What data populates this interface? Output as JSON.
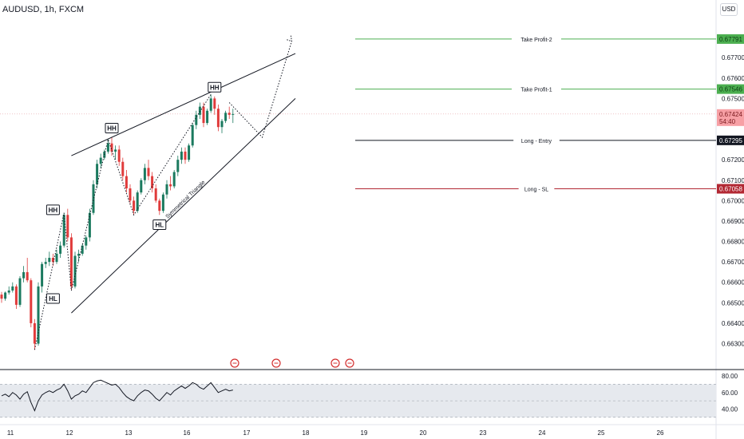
{
  "symbol": "AUDUSD, 1h, FXCM",
  "unit_button": "USD",
  "colors": {
    "candle_up": "#1b7a5f",
    "candle_down": "#e03b3b",
    "take_profit": "#4caf50",
    "entry": "#131722",
    "stop_loss": "#b22833",
    "current_price": "#f7a0a5",
    "rsi_line": "#131722",
    "rsi_band": "#e6e9ee"
  },
  "chart_data": {
    "type": "candlestick",
    "price_axis": {
      "range": [
        0.6622,
        0.679
      ],
      "ticks": [
        "0.67700",
        "0.67600",
        "0.67500",
        "0.67400",
        "0.67300",
        "0.67200",
        "0.67100",
        "0.67000",
        "0.66900",
        "0.66800",
        "0.66700",
        "0.66600",
        "0.66500",
        "0.66400",
        "0.66300"
      ]
    },
    "time_axis": {
      "labels": [
        "11",
        "12",
        "13",
        "16",
        "17",
        "18",
        "19",
        "20",
        "23",
        "24",
        "25",
        "26"
      ]
    },
    "levels": [
      {
        "label": "Take Profit-2",
        "price": "0.67791",
        "kind": "take_profit"
      },
      {
        "label": "Take Profit-1",
        "price": "0.67546",
        "kind": "take_profit"
      },
      {
        "label": "Long - Entry",
        "price": "0.67295",
        "kind": "entry"
      },
      {
        "label": "Long - SL",
        "price": "0.67058",
        "kind": "stop_loss"
      }
    ],
    "current_price": {
      "price": "0.67424",
      "countdown": "54:40"
    },
    "pattern_label": "Symmetrical Triangle",
    "swing_labels": [
      {
        "text": "HL",
        "x": 14,
        "y": 0.66521
      },
      {
        "text": "HH",
        "x": 14,
        "y": 0.66955
      },
      {
        "text": "HH",
        "x": 30,
        "y": 0.67355
      },
      {
        "text": "HL",
        "x": 43,
        "y": 0.66882
      },
      {
        "text": "HH",
        "x": 58,
        "y": 0.67555
      }
    ],
    "candles": [
      [
        0.6654,
        0.66553,
        0.665,
        0.6652
      ],
      [
        0.6652,
        0.66555,
        0.6651,
        0.6655
      ],
      [
        0.6655,
        0.6658,
        0.6654,
        0.6656
      ],
      [
        0.6656,
        0.666,
        0.6655,
        0.6658
      ],
      [
        0.6658,
        0.6659,
        0.6647,
        0.6649
      ],
      [
        0.6649,
        0.6663,
        0.6648,
        0.6662
      ],
      [
        0.6662,
        0.6668,
        0.666,
        0.6665
      ],
      [
        0.6665,
        0.6672,
        0.666,
        0.6661
      ],
      [
        0.6661,
        0.6662,
        0.6638,
        0.664
      ],
      [
        0.664,
        0.6642,
        0.6627,
        0.663
      ],
      [
        0.663,
        0.666,
        0.6629,
        0.6658
      ],
      [
        0.6658,
        0.667,
        0.6655,
        0.6669
      ],
      [
        0.6669,
        0.6672,
        0.6667,
        0.667
      ],
      [
        0.667,
        0.6675,
        0.6668,
        0.6672
      ],
      [
        0.6672,
        0.6674,
        0.6668,
        0.667
      ],
      [
        0.667,
        0.6676,
        0.6669,
        0.6674
      ],
      [
        0.6674,
        0.668,
        0.6672,
        0.6678
      ],
      [
        0.6678,
        0.6694,
        0.6677,
        0.6693
      ],
      [
        0.6693,
        0.6696,
        0.668,
        0.6682
      ],
      [
        0.6682,
        0.6684,
        0.6656,
        0.6658
      ],
      [
        0.6658,
        0.6675,
        0.6657,
        0.6673
      ],
      [
        0.6673,
        0.6676,
        0.667,
        0.6674
      ],
      [
        0.6674,
        0.6679,
        0.6673,
        0.6678
      ],
      [
        0.6678,
        0.6683,
        0.6676,
        0.6682
      ],
      [
        0.6682,
        0.6696,
        0.668,
        0.6694
      ],
      [
        0.6694,
        0.671,
        0.6693,
        0.6708
      ],
      [
        0.6708,
        0.672,
        0.6706,
        0.6718
      ],
      [
        0.6718,
        0.6723,
        0.6716,
        0.6721
      ],
      [
        0.6721,
        0.6725,
        0.672,
        0.6724
      ],
      [
        0.6724,
        0.673,
        0.6723,
        0.6728
      ],
      [
        0.6728,
        0.6731,
        0.6722,
        0.6724
      ],
      [
        0.6724,
        0.6727,
        0.672,
        0.6725
      ],
      [
        0.6725,
        0.6727,
        0.6717,
        0.6719
      ],
      [
        0.6719,
        0.6721,
        0.671,
        0.6712
      ],
      [
        0.6712,
        0.6715,
        0.6704,
        0.6706
      ],
      [
        0.6706,
        0.6708,
        0.6698,
        0.67
      ],
      [
        0.67,
        0.6702,
        0.6693,
        0.6695
      ],
      [
        0.6695,
        0.6705,
        0.6694,
        0.6704
      ],
      [
        0.6704,
        0.6711,
        0.6703,
        0.671
      ],
      [
        0.671,
        0.6718,
        0.6708,
        0.6716
      ],
      [
        0.6716,
        0.672,
        0.671,
        0.6712
      ],
      [
        0.6712,
        0.6714,
        0.6704,
        0.6706
      ],
      [
        0.6706,
        0.6708,
        0.6699,
        0.67
      ],
      [
        0.67,
        0.6701,
        0.6693,
        0.6695
      ],
      [
        0.6695,
        0.6704,
        0.6694,
        0.6703
      ],
      [
        0.6703,
        0.671,
        0.6701,
        0.6708
      ],
      [
        0.6708,
        0.6712,
        0.6705,
        0.6707
      ],
      [
        0.6707,
        0.6715,
        0.6706,
        0.6714
      ],
      [
        0.6714,
        0.6722,
        0.6712,
        0.672
      ],
      [
        0.672,
        0.6726,
        0.6718,
        0.6724
      ],
      [
        0.6724,
        0.6726,
        0.6718,
        0.672
      ],
      [
        0.672,
        0.6728,
        0.6719,
        0.6727
      ],
      [
        0.6727,
        0.6738,
        0.6726,
        0.6737
      ],
      [
        0.6737,
        0.6744,
        0.6735,
        0.6742
      ],
      [
        0.6742,
        0.6748,
        0.674,
        0.6746
      ],
      [
        0.6746,
        0.6748,
        0.6736,
        0.6738
      ],
      [
        0.6738,
        0.6745,
        0.6737,
        0.6744
      ],
      [
        0.6744,
        0.6752,
        0.6743,
        0.675
      ],
      [
        0.675,
        0.6751,
        0.6742,
        0.6745
      ],
      [
        0.6745,
        0.6747,
        0.6734,
        0.6736
      ],
      [
        0.6736,
        0.674,
        0.6733,
        0.6739
      ],
      [
        0.6739,
        0.6744,
        0.6738,
        0.6743
      ],
      [
        0.6743,
        0.6746,
        0.674,
        0.6742
      ],
      [
        0.6742,
        0.6745,
        0.6738,
        0.67424
      ]
    ],
    "projection_path": [
      {
        "x": 62,
        "y": 0.6748
      },
      {
        "x": 71,
        "y": 0.6731
      },
      {
        "x": 79,
        "y": 0.6778
      }
    ],
    "rsi": {
      "ticks": [
        "80.00",
        "60.00",
        "40.00"
      ],
      "range": [
        25,
        82
      ],
      "band": [
        30,
        70
      ],
      "values": [
        56,
        58,
        55,
        60,
        57,
        52,
        58,
        61,
        48,
        38,
        50,
        57,
        60,
        62,
        60,
        63,
        65,
        70,
        62,
        52,
        56,
        58,
        62,
        60,
        66,
        72,
        74,
        75,
        73,
        71,
        69,
        70,
        66,
        60,
        55,
        52,
        50,
        56,
        60,
        63,
        62,
        58,
        53,
        50,
        55,
        60,
        57,
        62,
        65,
        68,
        65,
        68,
        72,
        70,
        66,
        64,
        68,
        72,
        66,
        60,
        62,
        64,
        62,
        63
      ]
    }
  }
}
